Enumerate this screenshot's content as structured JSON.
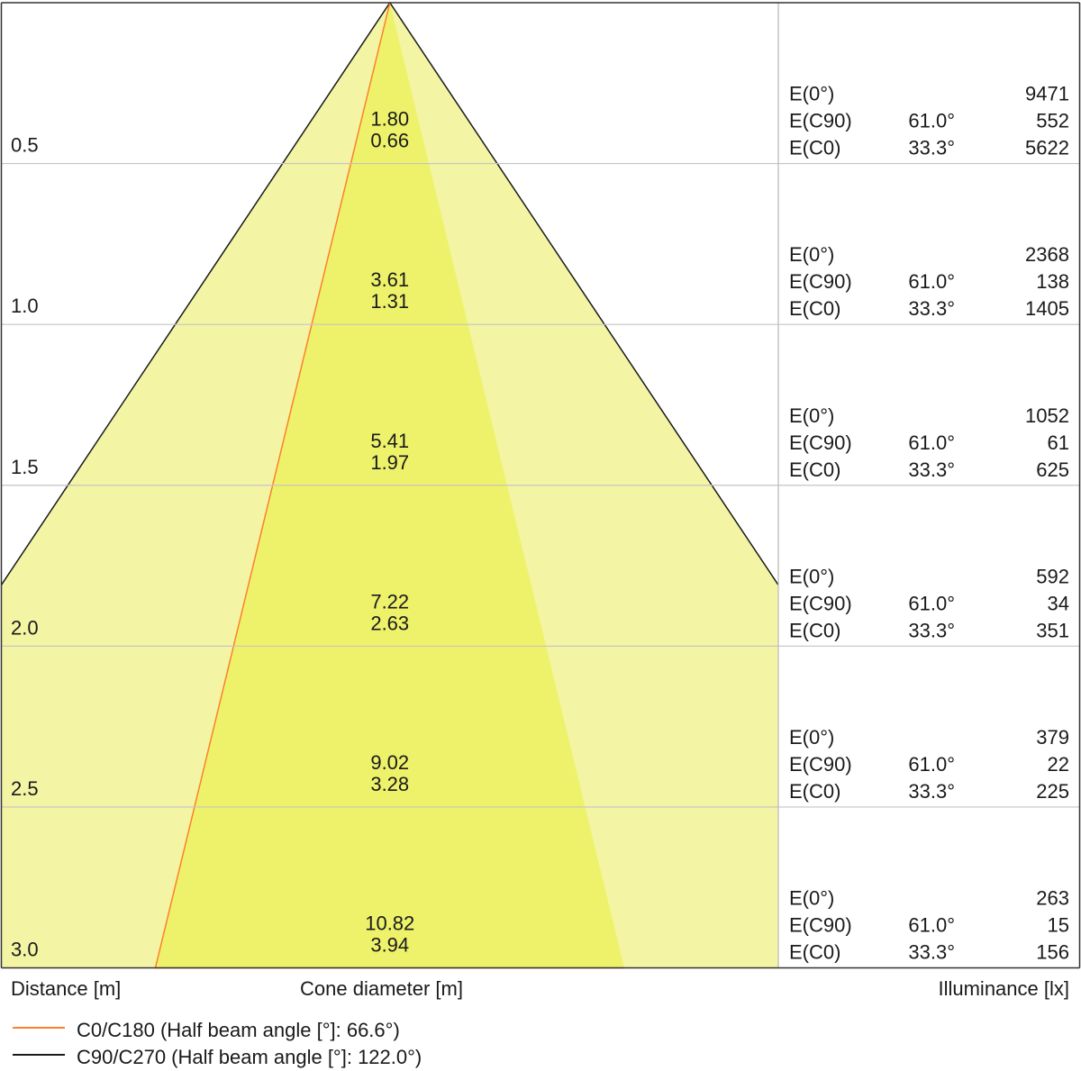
{
  "chart_data": {
    "type": "beam_cone",
    "distance_label": "Distance [m]",
    "cone_label": "Cone diameter [m]",
    "illuminance_label": "Illuminance [lx]",
    "distances": [
      "0.5",
      "1.0",
      "1.5",
      "2.0",
      "2.5",
      "3.0"
    ],
    "distance_values": [
      0.5,
      1.0,
      1.5,
      2.0,
      2.5,
      3.0
    ],
    "rows": [
      {
        "distance": "0.5",
        "cone_c90": "1.80",
        "cone_c0": "0.66",
        "e0": "9471",
        "ec90_angle": "61.0°",
        "ec90": "552",
        "ec0_angle": "33.3°",
        "ec0": "5622"
      },
      {
        "distance": "1.0",
        "cone_c90": "3.61",
        "cone_c0": "1.31",
        "e0": "2368",
        "ec90_angle": "61.0°",
        "ec90": "138",
        "ec0_angle": "33.3°",
        "ec0": "1405"
      },
      {
        "distance": "1.5",
        "cone_c90": "5.41",
        "cone_c0": "1.97",
        "e0": "1052",
        "ec90_angle": "61.0°",
        "ec90": "61",
        "ec0_angle": "33.3°",
        "ec0": "625"
      },
      {
        "distance": "2.0",
        "cone_c90": "7.22",
        "cone_c0": "2.63",
        "e0": "592",
        "ec90_angle": "61.0°",
        "ec90": "34",
        "ec0_angle": "33.3°",
        "ec0": "351"
      },
      {
        "distance": "2.5",
        "cone_c90": "9.02",
        "cone_c0": "3.28",
        "e0": "379",
        "ec90_angle": "61.0°",
        "ec90": "22",
        "ec0_angle": "33.3°",
        "ec0": "225"
      },
      {
        "distance": "3.0",
        "cone_c90": "10.82",
        "cone_c0": "3.94",
        "e0": "263",
        "ec90_angle": "61.0°",
        "ec90": "15",
        "ec0_angle": "33.3°",
        "ec0": "156"
      }
    ],
    "row_labels": {
      "e0": "E(0°)",
      "ec90": "E(C90)",
      "ec0": "E(C0)"
    },
    "series": [
      {
        "name": "C0/C180 (Half beam angle [°]: 66.6°)",
        "half_beam_angle": 66.6,
        "color": "#ff7f2a",
        "fill": "#eef26b"
      },
      {
        "name": "C90/C270 (Half beam angle [°]: 122.0°)",
        "half_beam_angle": 122.0,
        "color": "#1a1a1a",
        "fill": "#f3f5a4"
      }
    ],
    "grid": true
  }
}
